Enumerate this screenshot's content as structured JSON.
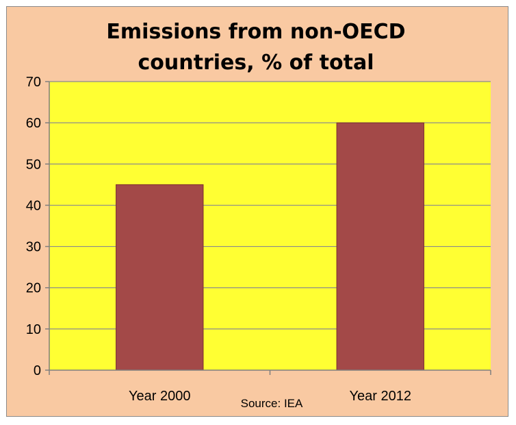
{
  "chart_data": {
    "type": "bar",
    "title": [
      "Emissions from non-OECD",
      "countries, % of total"
    ],
    "categories": [
      "Year 2000",
      "Year 2012"
    ],
    "values": [
      45,
      60
    ],
    "ylim": [
      0,
      70
    ],
    "yticks": [
      0,
      10,
      20,
      30,
      40,
      50,
      60,
      70
    ],
    "xlabel": "",
    "ylabel": "",
    "grid": true,
    "legend": "none",
    "annotation": "Source: IEA",
    "colors": {
      "outer_background": "#f9c9a2",
      "plot_background": "#ffff33",
      "bar_fill": "#a34948",
      "bar_stroke": "#7a2f2f",
      "grid": "#8c8c8c",
      "axis": "#7f7f7f"
    }
  }
}
